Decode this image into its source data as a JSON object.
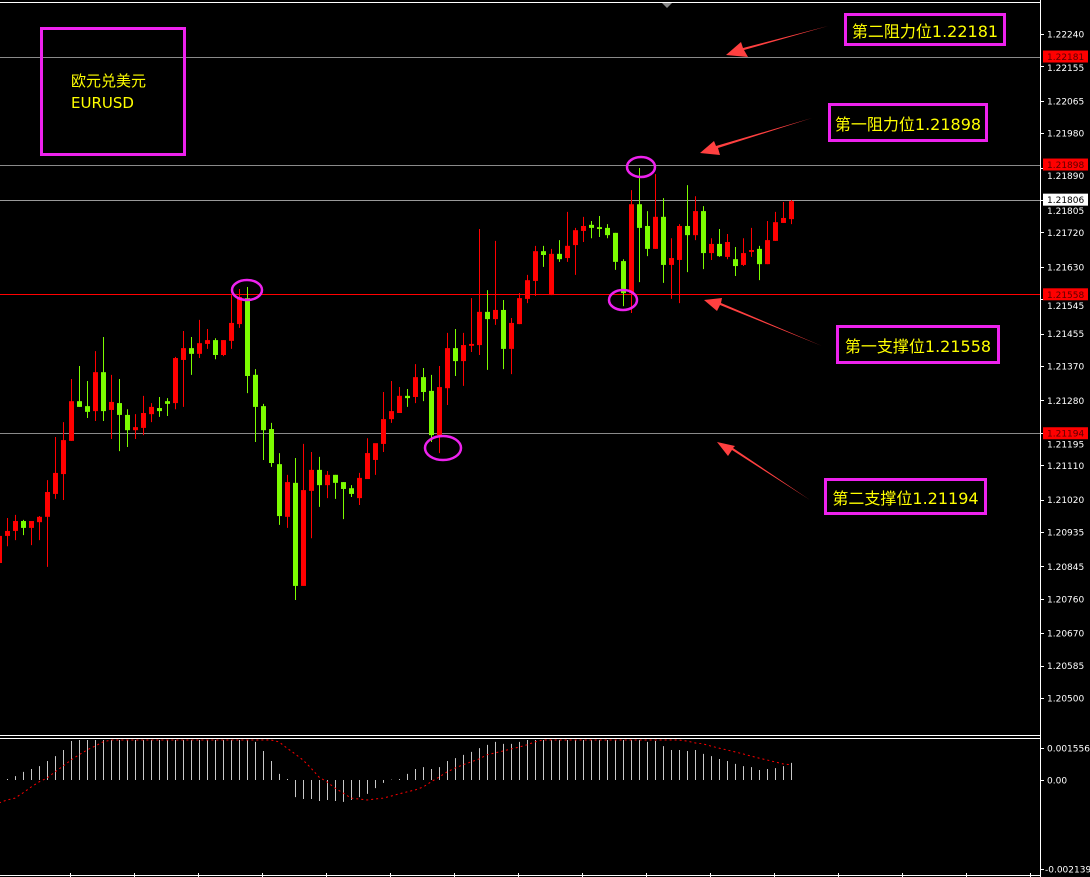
{
  "symbol_box": {
    "name_cn": "欧元兑美元",
    "symbol": "EURUSD"
  },
  "annotations": [
    {
      "text": "第二阻力位1.22181",
      "level": 1.22181
    },
    {
      "text": "第一阻力位1.21898",
      "level": 1.21898
    },
    {
      "text": "第一支撑位1.21558",
      "level": 1.21558
    },
    {
      "text": "第二支撑位1.21194",
      "level": 1.21194
    }
  ],
  "colors": {
    "bull": "#ff0000",
    "bear": "#7cfc00",
    "level_line": "#cc0000",
    "note_border": "#ee22ee",
    "note_text": "#ffff00",
    "histogram": "#c8c8c8",
    "signal": "#ff0000"
  },
  "chart_data": [
    {
      "type": "candlestick",
      "ylim": [
        1.205,
        1.2224
      ],
      "y_ticks": [
        "1.22240",
        "1.22155",
        "1.22065",
        "1.21980",
        "1.21890",
        "1.21805",
        "1.21720",
        "1.21630",
        "1.21545",
        "1.21455",
        "1.21370",
        "1.21280",
        "1.21195",
        "1.21110",
        "1.21020",
        "1.20935",
        "1.20845",
        "1.20760",
        "1.20670",
        "1.20585",
        "1.20500"
      ],
      "price_badges": [
        {
          "value": "1.22181",
          "style": "level"
        },
        {
          "value": "1.21898",
          "style": "level"
        },
        {
          "value": "1.21806",
          "style": "current"
        },
        {
          "value": "1.21558",
          "style": "level"
        },
        {
          "value": "1.21194",
          "style": "level"
        }
      ],
      "candles_ohlc": [
        [
          1.20854,
          1.2094,
          1.20846,
          1.20925
        ],
        [
          1.20925,
          1.20972,
          1.20898,
          1.20938
        ],
        [
          1.20938,
          1.2098,
          1.20914,
          1.20964
        ],
        [
          1.20964,
          1.20967,
          1.20927,
          1.20946
        ],
        [
          1.20946,
          1.20964,
          1.20901,
          1.20964
        ],
        [
          1.20961,
          1.20977,
          1.20914,
          1.20975
        ],
        [
          1.20975,
          1.21071,
          1.20844,
          1.2104
        ],
        [
          1.21035,
          1.21184,
          1.21022,
          1.2109
        ],
        [
          1.21087,
          1.21223,
          1.21019,
          1.21176
        ],
        [
          1.21174,
          1.21336,
          1.21174,
          1.21278
        ],
        [
          1.21278,
          1.2137,
          1.21263,
          1.21263
        ],
        [
          1.21265,
          1.21331,
          1.21234,
          1.2125
        ],
        [
          1.21252,
          1.21409,
          1.21226,
          1.21354
        ],
        [
          1.21354,
          1.21446,
          1.21226,
          1.21252
        ],
        [
          1.21255,
          1.21347,
          1.21179,
          1.21276
        ],
        [
          1.21273,
          1.21336,
          1.21147,
          1.21242
        ],
        [
          1.21242,
          1.21257,
          1.21158,
          1.21202
        ],
        [
          1.21202,
          1.21244,
          1.21179,
          1.2121
        ],
        [
          1.21208,
          1.21292,
          1.21189,
          1.21247
        ],
        [
          1.21244,
          1.21273,
          1.21223,
          1.21263
        ],
        [
          1.2126,
          1.21289,
          1.21237,
          1.21252
        ],
        [
          1.21278,
          1.21286,
          1.21239,
          1.21271
        ],
        [
          1.21273,
          1.21394,
          1.21257,
          1.21391
        ],
        [
          1.21386,
          1.21462,
          1.21263,
          1.21417
        ],
        [
          1.21417,
          1.21446,
          1.21347,
          1.21402
        ],
        [
          1.21402,
          1.21491,
          1.21391,
          1.2143
        ],
        [
          1.21428,
          1.21467,
          1.21415,
          1.21438
        ],
        [
          1.21438,
          1.21443,
          1.21388,
          1.21399
        ],
        [
          1.21399,
          1.21438,
          1.21396,
          1.21438
        ],
        [
          1.21436,
          1.21556,
          1.21415,
          1.21483
        ],
        [
          1.2148,
          1.21572,
          1.2147,
          1.21551
        ],
        [
          1.21548,
          1.21577,
          1.21299,
          1.21344
        ],
        [
          1.21347,
          1.21362,
          1.21171,
          1.21263
        ],
        [
          1.21265,
          1.21271,
          1.21124,
          1.21202
        ],
        [
          1.21205,
          1.21221,
          1.21106,
          1.21116
        ],
        [
          1.21113,
          1.21142,
          1.20954,
          1.20977
        ],
        [
          1.20975,
          1.21085,
          1.20946,
          1.21066
        ],
        [
          1.21064,
          1.21129,
          1.20757,
          1.20794
        ],
        [
          1.20794,
          1.21166,
          1.20794,
          1.21045
        ],
        [
          1.21043,
          1.21145,
          1.20919,
          1.21098
        ],
        [
          1.21098,
          1.21132,
          1.21001,
          1.21058
        ],
        [
          1.21058,
          1.21095,
          1.21024,
          1.21085
        ],
        [
          1.21085,
          1.21085,
          1.21022,
          1.21064
        ],
        [
          1.21066,
          1.21066,
          1.20969,
          1.21048
        ],
        [
          1.2105,
          1.21058,
          1.21027,
          1.21035
        ],
        [
          1.21024,
          1.2109,
          1.21006,
          1.21077
        ],
        [
          1.21074,
          1.21181,
          1.21074,
          1.21142
        ],
        [
          1.21124,
          1.21166,
          1.21085,
          1.21168
        ],
        [
          1.21166,
          1.21302,
          1.21145,
          1.21231
        ],
        [
          1.21231,
          1.21331,
          1.21221,
          1.21252
        ],
        [
          1.21247,
          1.21315,
          1.21247,
          1.21292
        ],
        [
          1.21292,
          1.2131,
          1.21263,
          1.21286
        ],
        [
          1.21289,
          1.21375,
          1.21273,
          1.21341
        ],
        [
          1.21341,
          1.21365,
          1.21278,
          1.21302
        ],
        [
          1.21305,
          1.21347,
          1.21171,
          1.21189
        ],
        [
          1.21189,
          1.2137,
          1.21142,
          1.21315
        ],
        [
          1.21312,
          1.21457,
          1.21268,
          1.21417
        ],
        [
          1.21417,
          1.21467,
          1.21344,
          1.21383
        ],
        [
          1.21383,
          1.21457,
          1.21318,
          1.21425
        ],
        [
          1.21423,
          1.21548,
          1.21407,
          1.21428
        ],
        [
          1.21425,
          1.21729,
          1.21399,
          1.21512
        ],
        [
          1.21512,
          1.21569,
          1.2136,
          1.21493
        ],
        [
          1.21493,
          1.21698,
          1.21478,
          1.21517
        ],
        [
          1.21517,
          1.21543,
          1.21362,
          1.21415
        ],
        [
          1.21415,
          1.21496,
          1.21349,
          1.21483
        ],
        [
          1.2148,
          1.21561,
          1.2148,
          1.21548
        ],
        [
          1.21546,
          1.21609,
          1.21535,
          1.21595
        ],
        [
          1.21593,
          1.21685,
          1.21554,
          1.21671
        ],
        [
          1.21671,
          1.21685,
          1.2163,
          1.21661
        ],
        [
          1.21556,
          1.21677,
          1.21556,
          1.21664
        ],
        [
          1.21664,
          1.217,
          1.21643,
          1.2165
        ],
        [
          1.21653,
          1.21774,
          1.21643,
          1.21685
        ],
        [
          1.21687,
          1.21732,
          1.21609,
          1.21726
        ],
        [
          1.21724,
          1.21761,
          1.21695,
          1.21737
        ],
        [
          1.2174,
          1.2175,
          1.21705,
          1.21732
        ],
        [
          1.21734,
          1.21763,
          1.21708,
          1.21729
        ],
        [
          1.21732,
          1.21742,
          1.21705,
          1.21713
        ],
        [
          1.21719,
          1.21719,
          1.21622,
          1.21643
        ],
        [
          1.21645,
          1.2165,
          1.21527,
          1.21561
        ],
        [
          1.21561,
          1.21831,
          1.21509,
          1.21794
        ],
        [
          1.21794,
          1.21889,
          1.2159,
          1.21732
        ],
        [
          1.21737,
          1.21776,
          1.21658,
          1.21677
        ],
        [
          1.21677,
          1.21873,
          1.21677,
          1.21761
        ],
        [
          1.21761,
          1.2181,
          1.21588,
          1.21635
        ],
        [
          1.21635,
          1.21705,
          1.21546,
          1.21653
        ],
        [
          1.21648,
          1.21742,
          1.21535,
          1.21737
        ],
        [
          1.21737,
          1.21844,
          1.21616,
          1.21713
        ],
        [
          1.21713,
          1.21815,
          1.217,
          1.21776
        ],
        [
          1.21776,
          1.21789,
          1.21624,
          1.21666
        ],
        [
          1.21666,
          1.21705,
          1.21648,
          1.2169
        ],
        [
          1.2169,
          1.21729,
          1.21656,
          1.21658
        ],
        [
          1.21656,
          1.21716,
          1.2165,
          1.21695
        ],
        [
          1.2165,
          1.21682,
          1.21606,
          1.21632
        ],
        [
          1.21635,
          1.21705,
          1.21632,
          1.21666
        ],
        [
          1.21669,
          1.21732,
          1.21656,
          1.21674
        ],
        [
          1.21677,
          1.21685,
          1.21595,
          1.21637
        ],
        [
          1.21637,
          1.2175,
          1.21637,
          1.217
        ],
        [
          1.21698,
          1.21774,
          1.21698,
          1.21747
        ],
        [
          1.21745,
          1.218,
          1.21745,
          1.21758
        ],
        [
          1.21755,
          1.21805,
          1.21742,
          1.21802
        ]
      ],
      "horizontal_levels": [
        1.22181,
        1.21898,
        1.21806,
        1.21558,
        1.21194
      ]
    },
    {
      "type": "bar",
      "y_ticks": [
        "0.001556",
        "0.00",
        "-0.002139"
      ],
      "ylim": [
        -0.002139,
        0.001556
      ],
      "histogram": [
        0,
        3e-05,
        0.00012,
        0.00025,
        0.00034,
        0.00043,
        0.00059,
        0.00074,
        0.00093,
        0.00121,
        0.0014,
        0.00149,
        0.00155,
        0.00155,
        0.00155,
        0.00155,
        0.00152,
        0.00149,
        0.00143,
        0.0014,
        0.00136,
        0.0013,
        0.00149,
        0.00152,
        0.00149,
        0.00152,
        0.00152,
        0.00152,
        0.00152,
        0.00155,
        0.00155,
        0.00143,
        0.00118,
        0.0009,
        0.00059,
        0.00019,
        3e-05,
        -0.00053,
        -0.00059,
        -0.00059,
        -0.00065,
        -0.00062,
        -0.00065,
        -0.00068,
        -0.00062,
        -0.00053,
        -0.00043,
        -0.00025,
        -9e-05,
        1e-05,
        3e-05,
        0.00019,
        0.00034,
        0.0004,
        0.00034,
        0.0004,
        0.00059,
        0.00068,
        0.00078,
        0.00087,
        0.00099,
        0.00109,
        0.00118,
        0.00112,
        0.00112,
        0.00118,
        0.00127,
        0.00143,
        0.00149,
        0.00155,
        0.00155,
        0.00155,
        0.00155,
        0.00155,
        0.00155,
        0.00155,
        0.00155,
        0.00146,
        0.00124,
        0.0013,
        0.0013,
        0.00118,
        0.00121,
        0.00105,
        0.00093,
        0.00093,
        0.0009,
        0.00093,
        0.00081,
        0.00074,
        0.00065,
        0.00059,
        0.0005,
        0.00043,
        0.0004,
        0.00031,
        0.00034,
        0.00037,
        0.00043,
        0.00053
      ],
      "signal": [
        -0.00071,
        -0.00062,
        -0.00056,
        -0.0004,
        -0.00022,
        -6e-05,
        6e-05,
        0.00025,
        0.00043,
        0.00062,
        0.00078,
        0.00093,
        0.00105,
        0.00118,
        0.00127,
        0.0014,
        0.00149,
        0.00152,
        0.00155,
        0.00155,
        0.00155,
        0.00155,
        0.00152,
        0.00149,
        0.00146,
        0.00149,
        0.00149,
        0.00152,
        0.00155,
        0.00155,
        0.00155,
        0.00152,
        0.00146,
        0.00143,
        0.00136,
        0.00118,
        0.00099,
        0.00081,
        0.00062,
        0.00037,
        9e-05,
        -6e-05,
        -0.00025,
        -0.0004,
        -0.00056,
        -0.00059,
        -0.00062,
        -0.00059,
        -0.00056,
        -0.0005,
        -0.00043,
        -0.00037,
        -0.00031,
        -0.00022,
        -6e-05,
        9e-05,
        0.00025,
        0.00037,
        0.00047,
        0.00056,
        0.00065,
        0.00078,
        0.00084,
        0.0009,
        0.00096,
        0.00102,
        0.00109,
        0.00118,
        0.00124,
        0.0013,
        0.00136,
        0.0014,
        0.00146,
        0.00152,
        0.00155,
        0.00158,
        0.00158,
        0.00158,
        0.00158,
        0.00155,
        0.00155,
        0.00152,
        0.00149,
        0.00143,
        0.0014,
        0.0013,
        0.00121,
        0.00115,
        0.00112,
        0.00105,
        0.00099,
        0.00093,
        0.00087,
        0.00081,
        0.00074,
        0.00068,
        0.00062,
        0.00056,
        0.0005,
        0.00047
      ]
    }
  ]
}
